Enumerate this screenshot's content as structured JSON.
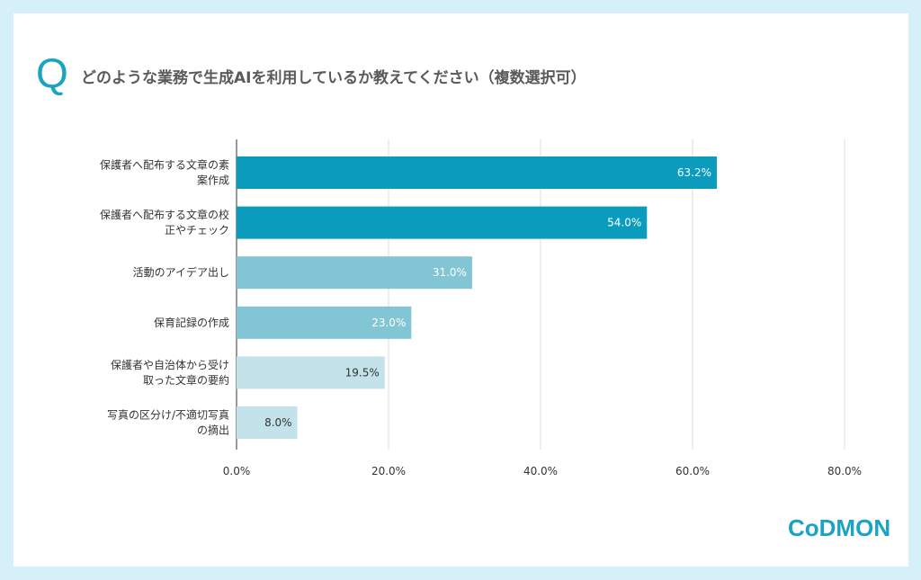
{
  "question_mark": "Q",
  "logo": "CoDMON",
  "colors": {
    "dark": "#0b9cbd",
    "mid": "#82c5d5",
    "light": "#c3e2ea",
    "bg": "#d5f0f8"
  },
  "chart_data": {
    "type": "bar",
    "orientation": "horizontal",
    "title": "どのような業務で生成AIを利用しているか教えてください（複数選択可）",
    "categories": [
      [
        "保護者へ配布する文章の素",
        "案作成"
      ],
      [
        "保護者へ配布する文章の校",
        "正やチェック"
      ],
      [
        "活動のアイデア出し"
      ],
      [
        "保育記録の作成"
      ],
      [
        "保護者や自治体から受け",
        "取った文章の要約"
      ],
      [
        "写真の区分け/不適切写真",
        "の摘出"
      ]
    ],
    "values": [
      63.2,
      54.0,
      31.0,
      23.0,
      19.5,
      8.0
    ],
    "labels": [
      "63.2%",
      "54.0%",
      "31.0%",
      "23.0%",
      "19.5%",
      "8.0%"
    ],
    "tones": [
      "dark",
      "dark",
      "mid",
      "mid",
      "light",
      "light"
    ],
    "xlim": [
      0,
      80
    ],
    "ticks": [
      0,
      20,
      40,
      60,
      80
    ],
    "tick_labels": [
      "0.0%",
      "20.0%",
      "40.0%",
      "60.0%",
      "80.0%"
    ],
    "grid": true
  }
}
